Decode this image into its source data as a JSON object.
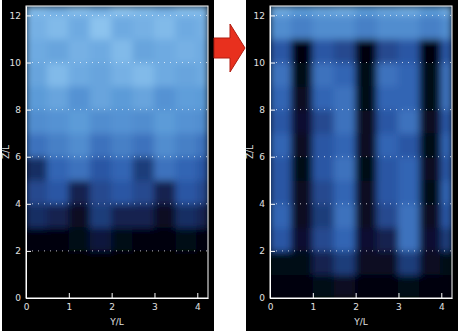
{
  "chart_data": [
    {
      "type": "heatmap",
      "xlabel": "Y/L",
      "ylabel": "Z/L",
      "xbins": [
        0,
        0.5,
        1,
        1.5,
        2,
        2.5,
        3,
        3.5,
        4,
        4.25
      ],
      "ybins": [
        0,
        1,
        2,
        3,
        4,
        5,
        6,
        7,
        8,
        9,
        10,
        11,
        12,
        12.4
      ],
      "values": [
        [
          0,
          0,
          0,
          0,
          0,
          0,
          0,
          0,
          0
        ],
        [
          0.02,
          0.02,
          0.02,
          0.02,
          0.02,
          0.02,
          0.02,
          0.02,
          0.02
        ],
        [
          0.05,
          0.05,
          0.1,
          0.25,
          0.1,
          0.05,
          0.05,
          0.1,
          0.05
        ],
        [
          0.35,
          0.3,
          0.15,
          0.4,
          0.3,
          0.3,
          0.15,
          0.35,
          0.3
        ],
        [
          0.45,
          0.5,
          0.3,
          0.45,
          0.5,
          0.45,
          0.3,
          0.5,
          0.45
        ],
        [
          0.35,
          0.55,
          0.6,
          0.5,
          0.55,
          0.4,
          0.6,
          0.55,
          0.5
        ],
        [
          0.6,
          0.65,
          0.7,
          0.6,
          0.65,
          0.6,
          0.7,
          0.65,
          0.6
        ],
        [
          0.7,
          0.72,
          0.75,
          0.7,
          0.72,
          0.7,
          0.75,
          0.72,
          0.7
        ],
        [
          0.75,
          0.78,
          0.72,
          0.78,
          0.75,
          0.78,
          0.72,
          0.76,
          0.75
        ],
        [
          0.78,
          0.85,
          0.8,
          0.78,
          0.82,
          0.85,
          0.8,
          0.78,
          0.8
        ],
        [
          0.8,
          0.78,
          0.82,
          0.8,
          0.85,
          0.78,
          0.8,
          0.82,
          0.8
        ],
        [
          0.82,
          0.85,
          0.8,
          0.88,
          0.8,
          0.82,
          0.85,
          0.8,
          0.82
        ],
        [
          0.85,
          0.82,
          0.86,
          0.82,
          0.88,
          0.85,
          0.82,
          0.86,
          0.85
        ]
      ],
      "xlim": [
        0,
        4.25
      ],
      "ylim": [
        0,
        12.4
      ],
      "xticks": [
        0,
        1,
        2,
        3,
        4
      ],
      "yticks": [
        0,
        2,
        4,
        6,
        8,
        10,
        12
      ],
      "grid": true
    },
    {
      "type": "heatmap",
      "xlabel": "Y/L",
      "ylabel": "Z/L",
      "xbins": [
        0,
        0.5,
        1,
        1.5,
        2,
        2.5,
        3,
        3.5,
        4,
        4.25
      ],
      "ybins": [
        0,
        1,
        2,
        3,
        4,
        5,
        6,
        7,
        8,
        9,
        10,
        11,
        12,
        12.4
      ],
      "values": [
        [
          0.05,
          0.05,
          0.1,
          0.15,
          0.05,
          0.05,
          0.1,
          0.05,
          0.05
        ],
        [
          0.1,
          0.1,
          0.3,
          0.4,
          0.15,
          0.15,
          0.4,
          0.15,
          0.1
        ],
        [
          0.5,
          0.2,
          0.45,
          0.55,
          0.2,
          0.3,
          0.6,
          0.2,
          0.4
        ],
        [
          0.55,
          0.15,
          0.4,
          0.6,
          0.15,
          0.45,
          0.6,
          0.15,
          0.5
        ],
        [
          0.5,
          0.15,
          0.45,
          0.55,
          0.15,
          0.5,
          0.55,
          0.1,
          0.55
        ],
        [
          0.5,
          0.1,
          0.5,
          0.6,
          0.1,
          0.5,
          0.55,
          0.15,
          0.5
        ],
        [
          0.55,
          0.15,
          0.5,
          0.55,
          0.15,
          0.55,
          0.5,
          0.1,
          0.55
        ],
        [
          0.5,
          0.2,
          0.45,
          0.6,
          0.15,
          0.5,
          0.6,
          0.15,
          0.5
        ],
        [
          0.55,
          0.15,
          0.55,
          0.6,
          0.1,
          0.55,
          0.55,
          0.1,
          0.6
        ],
        [
          0.6,
          0.1,
          0.6,
          0.55,
          0.1,
          0.6,
          0.55,
          0.1,
          0.6
        ],
        [
          0.5,
          0.05,
          0.5,
          0.45,
          0.05,
          0.45,
          0.5,
          0.05,
          0.5
        ],
        [
          0.7,
          0.65,
          0.7,
          0.7,
          0.65,
          0.7,
          0.7,
          0.65,
          0.7
        ],
        [
          0.8,
          0.75,
          0.78,
          0.8,
          0.75,
          0.78,
          0.8,
          0.75,
          0.8
        ]
      ],
      "xlim": [
        0,
        4.25
      ],
      "ylim": [
        0,
        12.4
      ],
      "xticks": [
        0,
        1,
        2,
        3,
        4
      ],
      "yticks": [
        0,
        2,
        4,
        6,
        8,
        10,
        12
      ],
      "grid": true
    }
  ]
}
